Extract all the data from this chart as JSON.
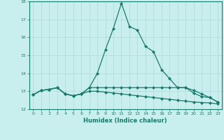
{
  "title": "",
  "xlabel": "Humidex (Indice chaleur)",
  "ylabel": "",
  "x": [
    0,
    1,
    2,
    3,
    4,
    5,
    6,
    7,
    8,
    9,
    10,
    11,
    12,
    13,
    14,
    15,
    16,
    17,
    18,
    19,
    20,
    21,
    22,
    23
  ],
  "line1": [
    12.8,
    13.05,
    13.1,
    13.2,
    12.85,
    12.75,
    12.85,
    13.2,
    14.0,
    15.3,
    16.5,
    17.9,
    16.6,
    16.4,
    15.5,
    15.2,
    14.2,
    13.7,
    13.2,
    13.2,
    12.9,
    12.7,
    12.65,
    12.4
  ],
  "line2": [
    12.8,
    13.05,
    13.1,
    13.2,
    12.85,
    12.75,
    12.85,
    13.2,
    13.2,
    13.2,
    13.2,
    13.2,
    13.2,
    13.2,
    13.2,
    13.2,
    13.2,
    13.2,
    13.2,
    13.2,
    13.05,
    12.85,
    12.65,
    12.4
  ],
  "line3": [
    12.8,
    13.05,
    13.1,
    13.2,
    12.85,
    12.75,
    12.85,
    13.0,
    13.0,
    12.95,
    12.9,
    12.85,
    12.8,
    12.75,
    12.7,
    12.65,
    12.6,
    12.55,
    12.5,
    12.45,
    12.4,
    12.37,
    12.35,
    12.3
  ],
  "ylim": [
    12,
    18
  ],
  "xlim": [
    -0.5,
    23.5
  ],
  "yticks": [
    12,
    13,
    14,
    15,
    16,
    17,
    18
  ],
  "xticks": [
    0,
    1,
    2,
    3,
    4,
    5,
    6,
    7,
    8,
    9,
    10,
    11,
    12,
    13,
    14,
    15,
    16,
    17,
    18,
    19,
    20,
    21,
    22,
    23
  ],
  "line_color": "#1a7a6e",
  "bg_color": "#c8eeee",
  "grid_color": "#b0d8d8",
  "marker": "D",
  "marker_size": 2.0,
  "linewidth": 0.9
}
